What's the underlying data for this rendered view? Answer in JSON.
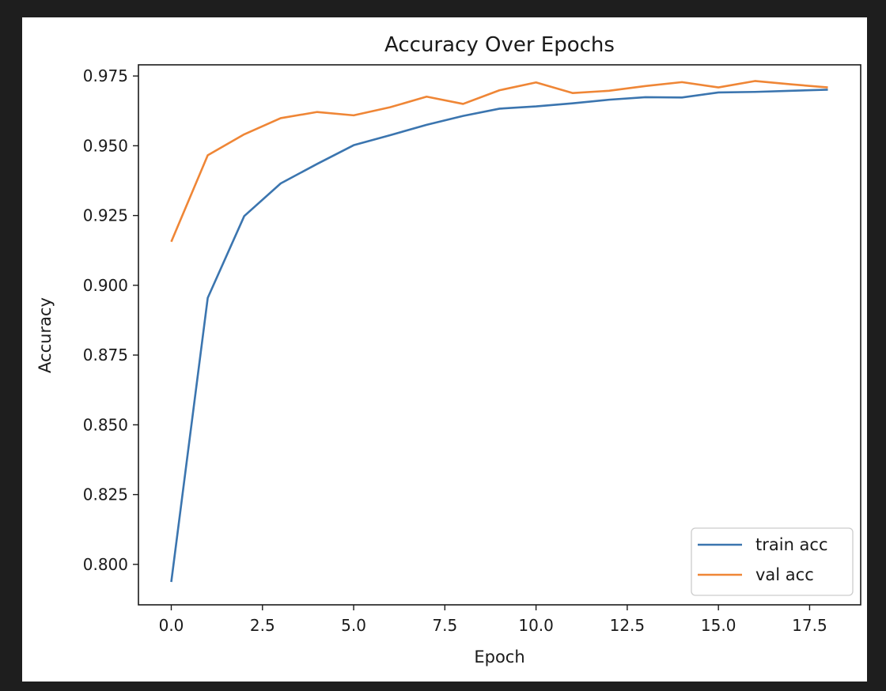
{
  "colors": {
    "page_background": "#1e1e1e",
    "figure_background": "#ffffff",
    "axes_color": "#1a1a1a",
    "train": "#3b75af",
    "val": "#ef8636"
  },
  "chart_data": {
    "type": "line",
    "title": "Accuracy Over Epochs",
    "xlabel": "Epoch",
    "ylabel": "Accuracy",
    "xlim": [
      -0.9,
      18.9
    ],
    "ylim": [
      0.7855,
      0.979
    ],
    "grid": false,
    "legend_position": "lower-right",
    "xticks": [
      0.0,
      2.5,
      5.0,
      7.5,
      10.0,
      12.5,
      15.0,
      17.5
    ],
    "xtick_labels": [
      "0.0",
      "2.5",
      "5.0",
      "7.5",
      "10.0",
      "12.5",
      "15.0",
      "17.5"
    ],
    "yticks": [
      0.8,
      0.825,
      0.85,
      0.875,
      0.9,
      0.925,
      0.95,
      0.975
    ],
    "ytick_labels": [
      "0.800",
      "0.825",
      "0.850",
      "0.875",
      "0.900",
      "0.925",
      "0.950",
      "0.975"
    ],
    "x": [
      0,
      1,
      2,
      3,
      4,
      5,
      6,
      7,
      8,
      9,
      10,
      11,
      12,
      13,
      14,
      15,
      16,
      17,
      18
    ],
    "series": [
      {
        "name": "train acc",
        "color": "#3b75af",
        "values": [
          0.7937,
          0.8955,
          0.9248,
          0.9365,
          0.9435,
          0.9502,
          0.9538,
          0.9575,
          0.9607,
          0.9633,
          0.9641,
          0.9652,
          0.9665,
          0.9674,
          0.9673,
          0.9691,
          0.9693,
          0.9697,
          0.9701
        ]
      },
      {
        "name": "val acc",
        "color": "#ef8636",
        "values": [
          0.9156,
          0.9466,
          0.9541,
          0.9599,
          0.9621,
          0.9609,
          0.9638,
          0.9676,
          0.965,
          0.9699,
          0.9727,
          0.9689,
          0.9697,
          0.9714,
          0.9728,
          0.9709,
          0.9732,
          0.972,
          0.9709
        ]
      }
    ]
  }
}
